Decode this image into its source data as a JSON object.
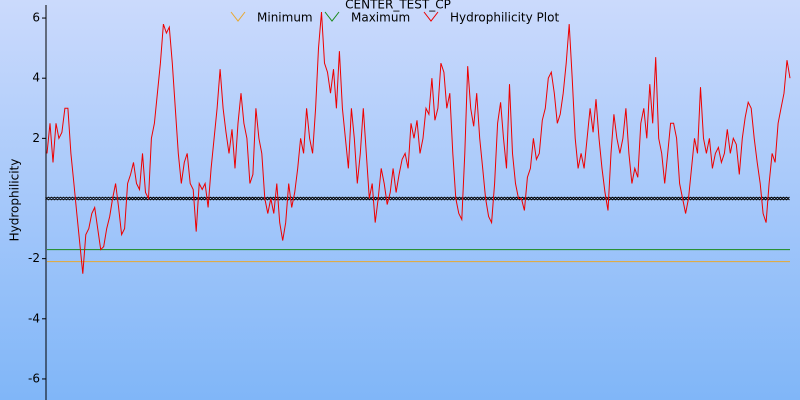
{
  "chart_data": {
    "type": "line",
    "title": "CENTER_TEST_CP",
    "y_label": "Hydrophilicity",
    "ylim": [
      -6.7,
      6.6
    ],
    "yticks": [
      -6,
      -4,
      -2,
      2,
      4,
      6
    ],
    "series": [
      {
        "name": "Minimum",
        "color": "#e8a830",
        "value": -2.1
      },
      {
        "name": "Maximum",
        "color": "#1a8a1a",
        "value": -1.7
      },
      {
        "name": "Hydrophilicity Plot",
        "color": "#ee0000",
        "values": [
          1.5,
          2.5,
          1.2,
          2.5,
          2,
          2.2,
          3,
          3,
          1.5,
          0.5,
          -0.5,
          -1.5,
          -2.5,
          -1.2,
          -1,
          -0.5,
          -0.3,
          -1,
          -1.7,
          -1.6,
          -1,
          -0.6,
          0,
          0.5,
          -0.3,
          -1.2,
          -1,
          0.5,
          0.8,
          1.2,
          0.5,
          0.3,
          1.5,
          0.2,
          0,
          2,
          2.5,
          3.5,
          4.5,
          5.8,
          5.5,
          5.7,
          4.5,
          3,
          1.5,
          0.5,
          1.2,
          1.5,
          0.5,
          0.3,
          -1.1,
          0.5,
          0.3,
          0.5,
          -0.3,
          1,
          2,
          3,
          4.3,
          3,
          2.2,
          1.5,
          2.3,
          1,
          2.5,
          3.5,
          2.5,
          2,
          0.5,
          0.8,
          3,
          2,
          1.5,
          0,
          -0.5,
          0,
          -0.5,
          0.5,
          -0.8,
          -1.4,
          -0.8,
          0.5,
          -0.3,
          0.2,
          1,
          2,
          1.5,
          3,
          2,
          1.5,
          3,
          5,
          6.2,
          4.5,
          4.2,
          3.5,
          4.3,
          3,
          4.9,
          3,
          2,
          1,
          3,
          2,
          0.5,
          1.5,
          3,
          1.5,
          0,
          0.5,
          -0.8,
          0,
          1,
          0.5,
          -0.2,
          0.2,
          1,
          0.2,
          0.8,
          1.3,
          1.5,
          1,
          2.5,
          2,
          2.6,
          1.5,
          2,
          3,
          2.8,
          4,
          2.6,
          3,
          4.5,
          4.2,
          3,
          3.5,
          1.5,
          0,
          -0.5,
          -0.7,
          1.5,
          4.4,
          3,
          2.4,
          3.5,
          2,
          1,
          0,
          -0.6,
          -0.8,
          0.5,
          2.5,
          3.2,
          2,
          1,
          3.8,
          1.5,
          0.5,
          0,
          0,
          -0.4,
          0.7,
          1,
          2,
          1.3,
          1.5,
          2.6,
          3,
          4,
          4.2,
          3.5,
          2.5,
          2.8,
          3.5,
          4.5,
          5.8,
          4,
          2,
          1,
          1.5,
          1,
          2,
          3,
          2.2,
          3.3,
          2,
          1,
          0.2,
          -0.4,
          1.5,
          2.8,
          2,
          1.5,
          2,
          3,
          1.5,
          0.5,
          1,
          0.7,
          2.5,
          3,
          2,
          3.8,
          2.5,
          4.7,
          2,
          1.5,
          0.5,
          1.5,
          2.5,
          2.5,
          2,
          0.5,
          0,
          -0.5,
          0,
          1,
          2,
          1.5,
          3.7,
          2,
          1.5,
          2,
          1,
          1.5,
          1.7,
          1.2,
          1.5,
          2.3,
          1.5,
          2,
          1.8,
          0.8,
          2,
          2.7,
          3.2,
          3,
          2,
          1.2,
          0.5,
          -0.5,
          -0.8,
          0.5,
          1.5,
          1.2,
          2.5,
          3,
          3.5,
          4.6,
          4
        ]
      }
    ]
  }
}
